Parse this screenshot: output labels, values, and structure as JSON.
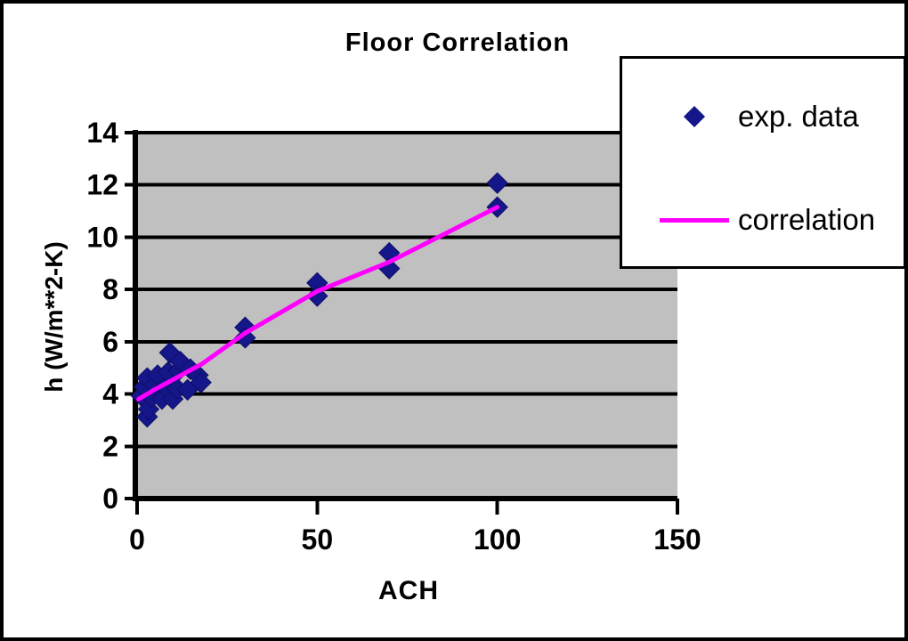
{
  "chart_data": {
    "type": "scatter",
    "title": "Floor Correlation",
    "xlabel": "ACH",
    "ylabel": "h (W/m**2-K)",
    "xlim": [
      0,
      150
    ],
    "ylim": [
      0,
      14
    ],
    "x_ticks": [
      0,
      50,
      100,
      150
    ],
    "y_ticks": [
      0,
      2,
      4,
      6,
      8,
      10,
      12,
      14
    ],
    "grid": "horizontal-black-gridlines",
    "plot_bg": "#C0C0C0",
    "axis_color": "#000000",
    "legend_position": "overlay-top-right",
    "series": [
      {
        "name": "exp. data",
        "type": "scatter",
        "marker": "diamond",
        "color": "#16168B",
        "points": [
          [
            1.2,
            3.93
          ],
          [
            2.0,
            4.27
          ],
          [
            2.8,
            4.61
          ],
          [
            2.8,
            3.13
          ],
          [
            3.2,
            3.42
          ],
          [
            4.0,
            3.87
          ],
          [
            4.9,
            4.33
          ],
          [
            5.7,
            4.72
          ],
          [
            6.9,
            3.81
          ],
          [
            7.8,
            4.27
          ],
          [
            8.6,
            4.84
          ],
          [
            9.1,
            5.58
          ],
          [
            9.9,
            3.81
          ],
          [
            11.1,
            4.21
          ],
          [
            11.5,
            4.9
          ],
          [
            12.0,
            5.24
          ],
          [
            14.0,
            4.16
          ],
          [
            14.8,
            4.95
          ],
          [
            16.9,
            4.72
          ],
          [
            17.7,
            4.44
          ],
          [
            30,
            6.55
          ],
          [
            30,
            6.15
          ],
          [
            50,
            8.25
          ],
          [
            50,
            7.75
          ],
          [
            70,
            9.4
          ],
          [
            70,
            8.8
          ],
          [
            100,
            12.07
          ],
          [
            100,
            11.15
          ]
        ]
      },
      {
        "name": "correlation",
        "type": "line",
        "color": "#FF00FF",
        "points": [
          [
            0.4,
            3.8
          ],
          [
            5,
            4.18
          ],
          [
            10,
            4.55
          ],
          [
            15,
            4.93
          ],
          [
            18,
            5.15
          ],
          [
            30,
            6.33
          ],
          [
            50,
            7.93
          ],
          [
            70,
            9.05
          ],
          [
            100,
            11.15
          ]
        ]
      }
    ]
  }
}
